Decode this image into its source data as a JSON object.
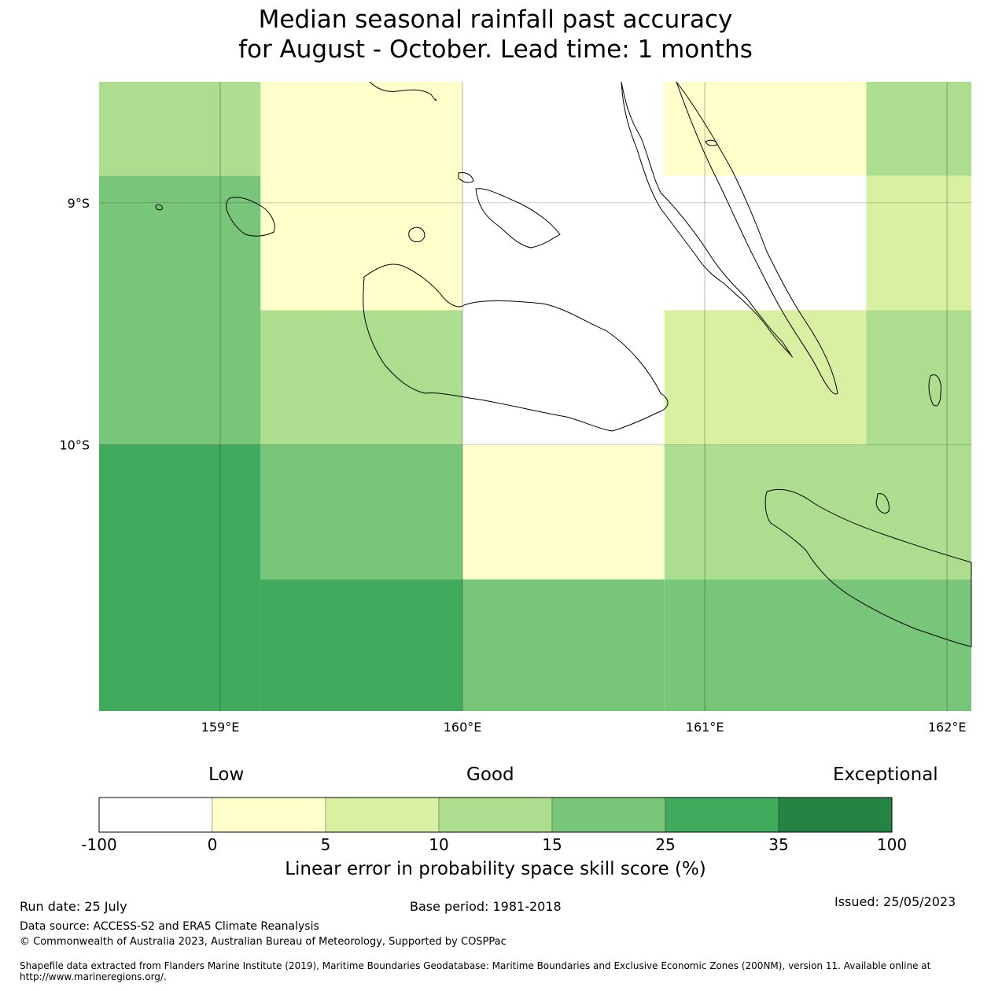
{
  "title": {
    "line1": "Median seasonal rainfall past accuracy",
    "line2": "for August - October. Lead time: 1 months"
  },
  "map": {
    "lon_range": [
      158.5,
      162.1
    ],
    "lat_range": [
      -11.1,
      -8.5
    ],
    "x_ticks": [
      {
        "value": 159,
        "label": "159°E"
      },
      {
        "value": 160,
        "label": "160°E"
      },
      {
        "value": 161,
        "label": "161°E"
      },
      {
        "value": 162,
        "label": "162°E"
      }
    ],
    "y_ticks": [
      {
        "value": -9,
        "label": "9°S"
      },
      {
        "value": -10,
        "label": "10°S"
      }
    ],
    "grid": true,
    "cells": [
      {
        "lon": [
          158.5,
          159.1667
        ],
        "lat": [
          -8.889,
          -8.5
        ],
        "category": 3
      },
      {
        "lon": [
          158.5,
          159.1667
        ],
        "lat": [
          -10.0,
          -8.889
        ],
        "category": 4
      },
      {
        "lon": [
          158.5,
          159.1667
        ],
        "lat": [
          -11.1,
          -10.0
        ],
        "category": 5
      },
      {
        "lon": [
          159.1667,
          160.0
        ],
        "lat": [
          -9.444,
          -8.5
        ],
        "category": 1
      },
      {
        "lon": [
          159.1667,
          160.0
        ],
        "lat": [
          -10.0,
          -9.444
        ],
        "category": 3
      },
      {
        "lon": [
          159.1667,
          160.0
        ],
        "lat": [
          -10.556,
          -10.0
        ],
        "category": 4
      },
      {
        "lon": [
          159.1667,
          160.0
        ],
        "lat": [
          -11.1,
          -10.556
        ],
        "category": 5
      },
      {
        "lon": [
          160.0,
          160.8333
        ],
        "lat": [
          -10.0,
          -8.5
        ],
        "category": 0
      },
      {
        "lon": [
          160.0,
          160.8333
        ],
        "lat": [
          -10.556,
          -10.0
        ],
        "category": 1
      },
      {
        "lon": [
          160.0,
          160.8333
        ],
        "lat": [
          -11.1,
          -10.556
        ],
        "category": 4
      },
      {
        "lon": [
          160.8333,
          161.6667
        ],
        "lat": [
          -8.889,
          -8.5
        ],
        "category": 1
      },
      {
        "lon": [
          160.8333,
          161.6667
        ],
        "lat": [
          -9.444,
          -8.889
        ],
        "category": 0
      },
      {
        "lon": [
          160.8333,
          161.6667
        ],
        "lat": [
          -10.0,
          -9.444
        ],
        "category": 2
      },
      {
        "lon": [
          160.8333,
          161.6667
        ],
        "lat": [
          -10.556,
          -10.0
        ],
        "category": 3
      },
      {
        "lon": [
          160.8333,
          161.6667
        ],
        "lat": [
          -11.1,
          -10.556
        ],
        "category": 4
      },
      {
        "lon": [
          161.6667,
          162.1
        ],
        "lat": [
          -8.889,
          -8.5
        ],
        "category": 3
      },
      {
        "lon": [
          161.6667,
          162.1
        ],
        "lat": [
          -9.444,
          -8.889
        ],
        "category": 2
      },
      {
        "lon": [
          161.6667,
          162.1
        ],
        "lat": [
          -10.0,
          -9.444
        ],
        "category": 3
      },
      {
        "lon": [
          161.6667,
          162.1
        ],
        "lat": [
          -10.556,
          -10.0
        ],
        "category": 3
      },
      {
        "lon": [
          161.6667,
          162.1
        ],
        "lat": [
          -11.1,
          -10.556
        ],
        "category": 4
      }
    ]
  },
  "colorbar": {
    "labels": {
      "low": "Low",
      "good": "Good",
      "exceptional": "Exceptional"
    },
    "colors": [
      "#ffffff",
      "#ffffcc",
      "#d9f0a3",
      "#addd8e",
      "#78c679",
      "#41ab5d",
      "#238443"
    ],
    "ticks": [
      "-100",
      "0",
      "5",
      "10",
      "15",
      "25",
      "35",
      "100"
    ],
    "title": "Linear error in probability space skill score (%)"
  },
  "footer": {
    "run_date": "Run date: 25 July",
    "base_period": "Base period: 1981-2018",
    "issued": "Issued: 25/05/2023",
    "data_source": "Data source: ACCESS-S2 and ERA5 Climate Reanalysis",
    "copyright": "© Commonwealth of Australia 2023, Australian Bureau of Meteorology, Supported by COSPPac",
    "shapefile_line1": "Shapefile data extracted from Flanders Marine Institute (2019), Maritime Boundaries Geodatabase: Maritime Boundaries and Exclusive Economic Zones (200NM), version 11. Available online at",
    "shapefile_line2": "http://www.marineregions.org/."
  }
}
